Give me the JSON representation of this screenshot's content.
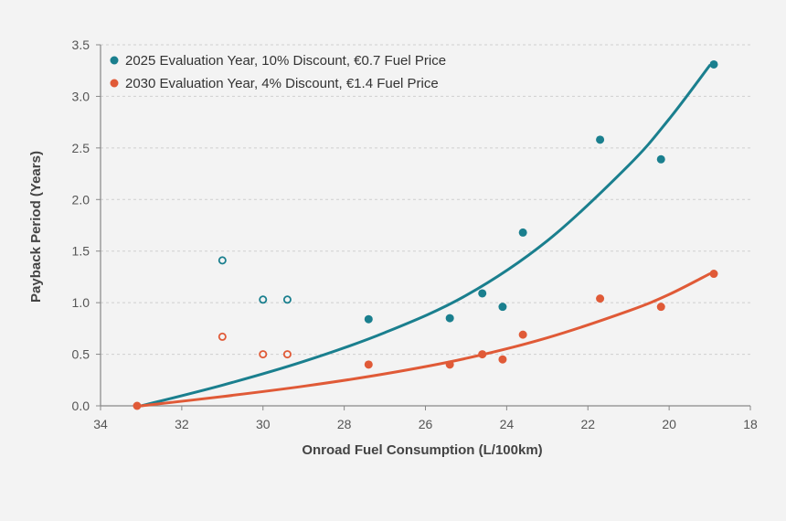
{
  "chart_data": {
    "type": "scatter",
    "title": "",
    "xlabel": "Onroad Fuel Consumption (L/100km)",
    "ylabel": "Payback Period (Years)",
    "xlim": [
      34,
      18
    ],
    "ylim": [
      0,
      3.5
    ],
    "x_reversed": true,
    "grid": "horizontal-dashed",
    "legend_position": "top-left",
    "x_ticks": [
      34,
      32,
      30,
      28,
      26,
      24,
      22,
      20,
      18
    ],
    "y_ticks": [
      0.0,
      0.5,
      1.0,
      1.5,
      2.0,
      2.5,
      3.0,
      3.5
    ],
    "x_tick_labels": [
      "34",
      "32",
      "30",
      "28",
      "26",
      "24",
      "22",
      "20",
      "18"
    ],
    "y_tick_labels": [
      "0.0",
      "0.5",
      "1.0",
      "1.5",
      "2.0",
      "2.5",
      "3.0",
      "3.5"
    ],
    "series": [
      {
        "name": "2025 Evaluation Year, 10% Discount, €0.7 Fuel Price",
        "color": "#1a7f8e",
        "filled_points": [
          {
            "x": 27.4,
            "y": 0.84
          },
          {
            "x": 25.4,
            "y": 0.85
          },
          {
            "x": 24.6,
            "y": 1.09
          },
          {
            "x": 24.1,
            "y": 0.96
          },
          {
            "x": 23.6,
            "y": 1.68
          },
          {
            "x": 21.7,
            "y": 2.58
          },
          {
            "x": 20.2,
            "y": 2.39
          },
          {
            "x": 18.9,
            "y": 3.31
          }
        ],
        "open_points": [
          {
            "x": 31.0,
            "y": 1.41
          },
          {
            "x": 30.0,
            "y": 1.03
          },
          {
            "x": 29.4,
            "y": 1.03
          }
        ],
        "trendline": [
          {
            "x": 33.0,
            "y": 0.0
          },
          {
            "x": 31.0,
            "y": 0.2
          },
          {
            "x": 29.0,
            "y": 0.43
          },
          {
            "x": 27.0,
            "y": 0.71
          },
          {
            "x": 25.0,
            "y": 1.07
          },
          {
            "x": 23.0,
            "y": 1.6
          },
          {
            "x": 21.0,
            "y": 2.33
          },
          {
            "x": 20.0,
            "y": 2.78
          },
          {
            "x": 19.0,
            "y": 3.3
          }
        ]
      },
      {
        "name": "2030 Evaluation Year, 4% Discount, €1.4 Fuel Price",
        "color": "#e05a37",
        "filled_points": [
          {
            "x": 33.1,
            "y": 0.0
          },
          {
            "x": 27.4,
            "y": 0.4
          },
          {
            "x": 25.4,
            "y": 0.4
          },
          {
            "x": 24.6,
            "y": 0.5
          },
          {
            "x": 24.1,
            "y": 0.45
          },
          {
            "x": 23.6,
            "y": 0.69
          },
          {
            "x": 21.7,
            "y": 1.04
          },
          {
            "x": 20.2,
            "y": 0.96
          },
          {
            "x": 18.9,
            "y": 1.28
          }
        ],
        "open_points": [
          {
            "x": 31.0,
            "y": 0.67
          },
          {
            "x": 30.0,
            "y": 0.5
          },
          {
            "x": 29.4,
            "y": 0.5
          }
        ],
        "trendline": [
          {
            "x": 33.0,
            "y": 0.0
          },
          {
            "x": 31.0,
            "y": 0.09
          },
          {
            "x": 29.0,
            "y": 0.19
          },
          {
            "x": 27.0,
            "y": 0.31
          },
          {
            "x": 25.0,
            "y": 0.46
          },
          {
            "x": 23.0,
            "y": 0.66
          },
          {
            "x": 21.0,
            "y": 0.92
          },
          {
            "x": 20.0,
            "y": 1.08
          },
          {
            "x": 19.0,
            "y": 1.28
          }
        ]
      }
    ]
  }
}
